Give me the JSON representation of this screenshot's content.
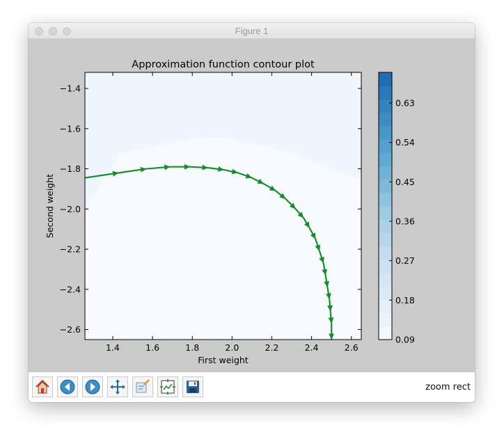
{
  "window": {
    "title": "Figure 1"
  },
  "status": {
    "mode": "zoom rect"
  },
  "toolbar": {
    "buttons": [
      {
        "name": "home-icon"
      },
      {
        "name": "back-icon"
      },
      {
        "name": "forward-icon"
      },
      {
        "name": "pan-icon"
      },
      {
        "name": "zoom-icon"
      },
      {
        "name": "subplots-icon"
      },
      {
        "name": "save-icon"
      }
    ]
  },
  "colors": {
    "canvas_bg": "#cbcbcb",
    "arrow": "#1a8a2a",
    "colormap": "Blues"
  },
  "chart_data": {
    "type": "contour",
    "title": "Approximation function contour plot",
    "xlabel": "First weight",
    "ylabel": "Second weight",
    "xlim": [
      1.26,
      2.65
    ],
    "ylim": [
      -2.65,
      -1.32
    ],
    "xticks": [
      1.4,
      1.6,
      1.8,
      2.0,
      2.2,
      2.4,
      2.6
    ],
    "xtick_labels": [
      "1.4",
      "1.6",
      "1.8",
      "2.0",
      "2.2",
      "2.4",
      "2.6"
    ],
    "yticks": [
      -1.4,
      -1.6,
      -1.8,
      -2.0,
      -2.2,
      -2.4,
      -2.6
    ],
    "ytick_labels": [
      "−1.4",
      "−1.6",
      "−1.8",
      "−2.0",
      "−2.2",
      "−2.4",
      "−2.6"
    ],
    "colorbar": {
      "ticks": [
        0.09,
        0.18,
        0.27,
        0.36,
        0.45,
        0.54,
        0.63
      ],
      "labels": [
        "0.09",
        "0.18",
        "0.27",
        "0.36",
        "0.45",
        "0.54",
        "0.63"
      ],
      "range": [
        0.09,
        0.7
      ],
      "levels": 20
    },
    "contour_regions": [
      {
        "level": 0.09,
        "polygon": [
          [
            1.26,
            -2.65
          ],
          [
            2.65,
            -2.65
          ],
          [
            2.65,
            -1.85
          ],
          [
            2.5,
            -1.8
          ],
          [
            2.3,
            -1.72
          ],
          [
            2.0,
            -1.65
          ],
          [
            1.85,
            -1.64
          ],
          [
            1.44,
            -1.72
          ],
          [
            1.26,
            -2.0
          ]
        ]
      },
      {
        "level": 0.12,
        "polygon": [
          [
            1.26,
            -2.0
          ],
          [
            1.44,
            -1.72
          ],
          [
            1.85,
            -1.64
          ],
          [
            2.0,
            -1.65
          ],
          [
            2.3,
            -1.72
          ],
          [
            2.5,
            -1.8
          ],
          [
            2.65,
            -1.85
          ],
          [
            2.65,
            -1.32
          ],
          [
            1.26,
            -1.32
          ]
        ]
      }
    ],
    "path": {
      "x": [
        1.26,
        1.43,
        1.57,
        1.69,
        1.79,
        1.88,
        1.96,
        2.03,
        2.1,
        2.16,
        2.22,
        2.27,
        2.32,
        2.36,
        2.39,
        2.42,
        2.44,
        2.46,
        2.47,
        2.48,
        2.49,
        2.495,
        2.5,
        2.5
      ],
      "y": [
        -1.845,
        -1.82,
        -1.8,
        -1.79,
        -1.79,
        -1.795,
        -1.805,
        -1.82,
        -1.845,
        -1.875,
        -1.91,
        -1.95,
        -2.0,
        -2.045,
        -2.095,
        -2.15,
        -2.21,
        -2.27,
        -2.33,
        -2.39,
        -2.45,
        -2.51,
        -2.57,
        -2.65
      ]
    }
  }
}
